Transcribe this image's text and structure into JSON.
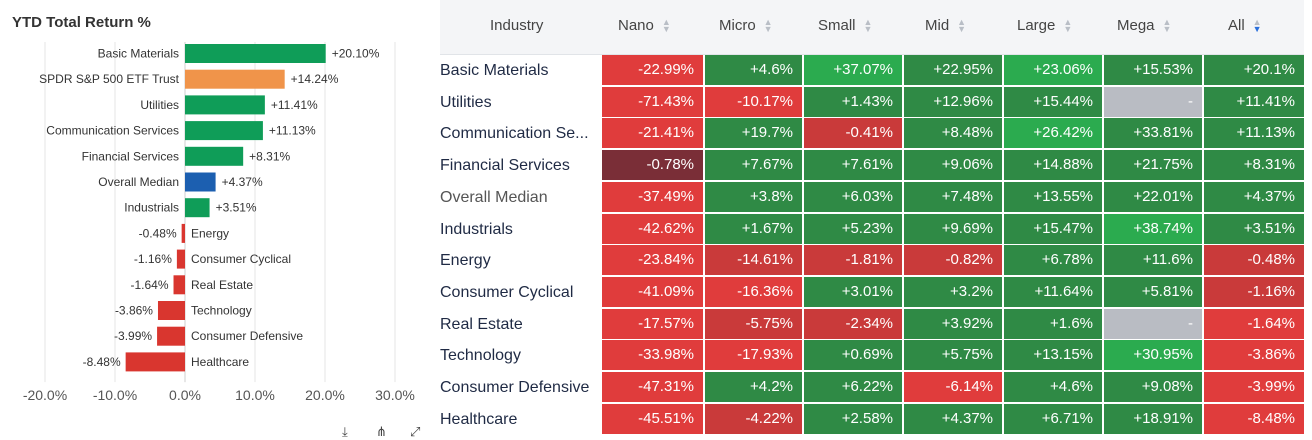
{
  "chart_data": {
    "type": "bar",
    "orientation": "horizontal",
    "title": "YTD Total Return %",
    "categories": [
      "Basic Materials",
      "SPDR S&P 500 ETF Trust",
      "Utilities",
      "Communication Services",
      "Financial Services",
      "Overall Median",
      "Industrials",
      "Energy",
      "Consumer Cyclical",
      "Real Estate",
      "Technology",
      "Consumer Defensive",
      "Healthcare"
    ],
    "values": [
      20.1,
      14.24,
      11.41,
      11.13,
      8.31,
      4.37,
      3.51,
      -0.48,
      -1.16,
      -1.64,
      -3.86,
      -3.99,
      -8.48
    ],
    "labels": [
      "+20.10%",
      "+14.24%",
      "+11.41%",
      "+11.13%",
      "+8.31%",
      "+4.37%",
      "+3.51%",
      "-0.48%",
      "-1.16%",
      "-1.64%",
      "-3.86%",
      "-3.99%",
      "-8.48%"
    ],
    "colors": [
      "#0f9d58",
      "#f0944a",
      "#0f9d58",
      "#0f9d58",
      "#0f9d58",
      "#1c5fb0",
      "#0f9d58",
      "#d9362f",
      "#d9362f",
      "#d9362f",
      "#d9362f",
      "#d9362f",
      "#d9362f"
    ],
    "xlim": [
      -20,
      30
    ],
    "xticks": [
      "-20.0%",
      "-10.0%",
      "0.0%",
      "10.0%",
      "20.0%",
      "30.0%"
    ],
    "grid": true,
    "legend": "none"
  },
  "toolbar": {
    "icons": [
      "download-icon",
      "share-icon",
      "fullscreen-icon"
    ],
    "glyphs": [
      "⤓",
      "⋔",
      "⤢"
    ]
  },
  "table": {
    "header": {
      "industry": "Industry",
      "columns": [
        "Nano",
        "Micro",
        "Small",
        "Mid",
        "Large",
        "Mega",
        "All"
      ],
      "sorted_column": "All",
      "sort_direction": "descending"
    },
    "rows": [
      {
        "name": "Basic Materials",
        "values": [
          "-22.99%",
          "+4.6%",
          "+37.07%",
          "+22.95%",
          "+23.06%",
          "+15.53%",
          "+20.1%"
        ]
      },
      {
        "name": "Utilities",
        "values": [
          "-71.43%",
          "-10.17%",
          "+1.43%",
          "+12.96%",
          "+15.44%",
          "-",
          "+11.41%"
        ]
      },
      {
        "name": "Communication Se...",
        "values": [
          "-21.41%",
          "+19.7%",
          "-0.41%",
          "+8.48%",
          "+26.42%",
          "+33.81%",
          "+11.13%"
        ]
      },
      {
        "name": "Financial Services",
        "values": [
          "-0.78%",
          "+7.67%",
          "+7.61%",
          "+9.06%",
          "+14.88%",
          "+21.75%",
          "+8.31%"
        ]
      },
      {
        "name": "Overall Median",
        "values": [
          "-37.49%",
          "+3.8%",
          "+6.03%",
          "+7.48%",
          "+13.55%",
          "+22.01%",
          "+4.37%"
        ]
      },
      {
        "name": "Industrials",
        "values": [
          "-42.62%",
          "+1.67%",
          "+5.23%",
          "+9.69%",
          "+15.47%",
          "+38.74%",
          "+3.51%"
        ]
      },
      {
        "name": "Energy",
        "values": [
          "-23.84%",
          "-14.61%",
          "-1.81%",
          "-0.82%",
          "+6.78%",
          "+11.6%",
          "-0.48%"
        ]
      },
      {
        "name": "Consumer Cyclical",
        "values": [
          "-41.09%",
          "-16.36%",
          "+3.01%",
          "+3.2%",
          "+11.64%",
          "+5.81%",
          "-1.16%"
        ]
      },
      {
        "name": "Real Estate",
        "values": [
          "-17.57%",
          "-5.75%",
          "-2.34%",
          "+3.92%",
          "+1.6%",
          "-",
          "-1.64%"
        ]
      },
      {
        "name": "Technology",
        "values": [
          "-33.98%",
          "-17.93%",
          "+0.69%",
          "+5.75%",
          "+13.15%",
          "+30.95%",
          "-3.86%"
        ]
      },
      {
        "name": "Consumer Defensive",
        "values": [
          "-47.31%",
          "+4.2%",
          "+6.22%",
          "-6.14%",
          "+4.6%",
          "+9.08%",
          "-3.99%"
        ]
      },
      {
        "name": "Healthcare",
        "values": [
          "-45.51%",
          "-4.22%",
          "+2.58%",
          "+4.37%",
          "+6.71%",
          "+18.91%",
          "-8.48%"
        ]
      }
    ],
    "colors": [
      "#e03c3c",
      "#2f8a45",
      "#2bab4f",
      "#c93a3a",
      "#7a2e37",
      "#b9bcc3"
    ],
    "cell_colors": [
      [
        0,
        1,
        2,
        1,
        2,
        1,
        1
      ],
      [
        0,
        0,
        1,
        1,
        1,
        5,
        1
      ],
      [
        0,
        1,
        3,
        1,
        2,
        1,
        1
      ],
      [
        4,
        1,
        1,
        1,
        1,
        1,
        1
      ],
      [
        0,
        1,
        1,
        1,
        1,
        1,
        1
      ],
      [
        0,
        1,
        1,
        1,
        1,
        2,
        1
      ],
      [
        0,
        3,
        3,
        3,
        1,
        1,
        3
      ],
      [
        0,
        0,
        1,
        1,
        1,
        1,
        3
      ],
      [
        0,
        3,
        3,
        1,
        1,
        5,
        0
      ],
      [
        0,
        0,
        1,
        1,
        1,
        2,
        0
      ],
      [
        0,
        1,
        1,
        0,
        1,
        1,
        0
      ],
      [
        0,
        3,
        1,
        1,
        1,
        1,
        0
      ]
    ]
  }
}
